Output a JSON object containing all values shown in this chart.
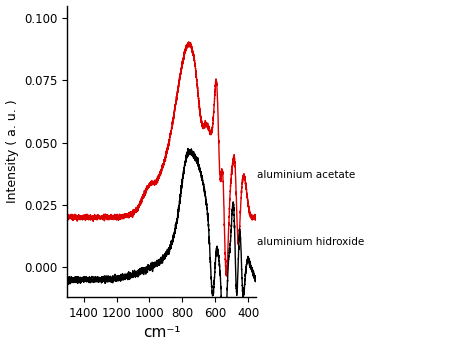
{
  "title": "",
  "xlabel": "cm⁻¹",
  "ylabel": "Intensity ( a. u. )",
  "xlim": [
    1500,
    350
  ],
  "ylim": [
    -0.012,
    0.105
  ],
  "xticks": [
    1400,
    1200,
    1000,
    800,
    600,
    400
  ],
  "yticks": [
    0.0,
    0.025,
    0.05,
    0.075,
    0.1
  ],
  "legend_acetate": "aluminium acetate",
  "legend_hydroxide": "aluminium hidroxide",
  "color_acetate": "#dd0000",
  "color_hydroxide": "#000000",
  "background_color": "#ffffff",
  "linewidth": 1.0
}
